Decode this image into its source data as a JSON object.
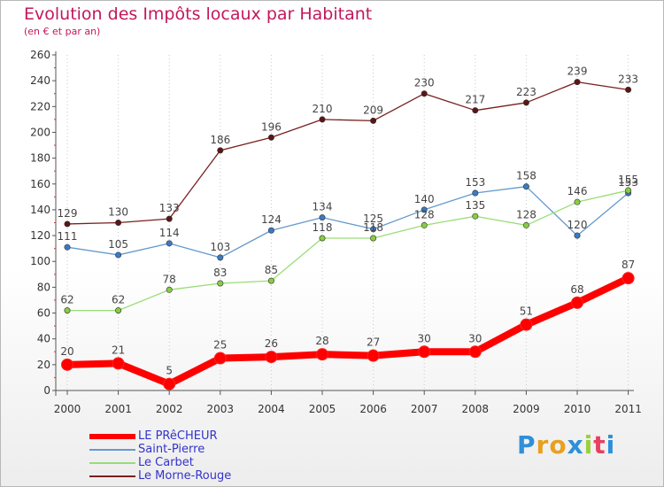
{
  "chart_data": {
    "type": "line",
    "title": "Evolution des Impôts locaux par Habitant",
    "subtitle": "(en € et par an)",
    "xlabel": "",
    "ylabel": "",
    "ylim": [
      0,
      260
    ],
    "yticks": [
      0,
      20,
      40,
      60,
      80,
      100,
      120,
      140,
      160,
      180,
      200,
      220,
      240,
      260
    ],
    "grid": "vertical dotted",
    "legend_position": "bottom-left",
    "x": [
      "2000",
      "2001",
      "2002",
      "2003",
      "2004",
      "2005",
      "2006",
      "2007",
      "2008",
      "2009",
      "2010",
      "2011"
    ],
    "series": [
      {
        "name": "Le Morne-Rouge",
        "color": "#7a1f1f",
        "marker": "#5c1515",
        "label_color": "#444444",
        "values": [
          129,
          130,
          133,
          186,
          196,
          210,
          209,
          230,
          217,
          223,
          239,
          233
        ]
      },
      {
        "name": "Saint-Pierre",
        "color": "#6699cc",
        "marker": "#3a7ac4",
        "label_color": "#444444",
        "values": [
          111,
          105,
          114,
          103,
          124,
          134,
          125,
          140,
          153,
          158,
          120,
          153
        ]
      },
      {
        "name": "Le Carbet",
        "color": "#99dd77",
        "marker": "#88cc44",
        "label_color": "#444444",
        "values": [
          62,
          62,
          78,
          83,
          85,
          118,
          118,
          128,
          135,
          128,
          146,
          155
        ]
      },
      {
        "name": "LE PRêCHEUR",
        "color": "#ff0000",
        "marker": "#ff0000",
        "label_color": "#444444",
        "values": [
          20,
          21,
          5,
          25,
          26,
          28,
          27,
          30,
          30,
          51,
          68,
          87
        ]
      }
    ]
  },
  "legend": {
    "items": [
      {
        "label": "LE PRêCHEUR",
        "color": "#ff0000",
        "thickness": 6
      },
      {
        "label": "Saint-Pierre",
        "color": "#6699cc",
        "thickness": 2
      },
      {
        "label": "Le Carbet",
        "color": "#99dd77",
        "thickness": 2
      },
      {
        "label": "Le Morne-Rouge",
        "color": "#7a1f1f",
        "thickness": 2
      }
    ],
    "label_color": "#3333cc"
  },
  "logo": {
    "letters": [
      "P",
      "r",
      "o",
      "x",
      "i",
      "t",
      "i"
    ],
    "colors": [
      "#2f8fd8",
      "#e8a020",
      "#e8a020",
      "#2f8fd8",
      "#9bcf3c",
      "#e84060",
      "#2f8fd8"
    ]
  }
}
